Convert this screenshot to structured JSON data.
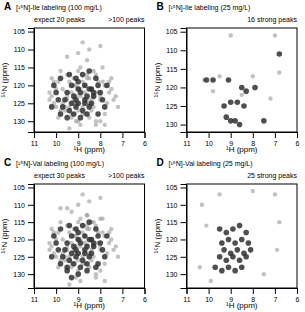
{
  "chart_data": [
    {
      "type": "scatter",
      "label": "A",
      "title": "[¹⁵N]-Ile labeling (100 mg/L)",
      "subtitle": "expect 20 peaks",
      "annotation": ">100 peaks",
      "xlabel": "¹H (ppm)",
      "ylabel": "¹⁵N (ppm)",
      "xlim": [
        11,
        6
      ],
      "ylim": [
        133,
        104
      ],
      "xticks": [
        11,
        10,
        9,
        8,
        7,
        6
      ],
      "yticks": [
        105,
        110,
        115,
        120,
        125,
        130
      ],
      "series": [
        {
          "color": "#999999",
          "x": [
            9.8,
            9.5,
            9.2,
            8.9,
            8.6,
            9.1,
            8.8,
            8.5,
            8.2,
            7.9,
            9.3,
            9.0,
            8.7,
            8.4,
            8.1,
            9.5,
            9.2,
            8.9,
            8.6,
            8.3,
            9.7,
            9.4,
            9.1,
            8.8,
            8.5,
            9.6,
            9.3,
            9.0,
            8.7,
            8.4,
            10.0,
            10.2,
            10.1,
            9.9,
            10.3,
            7.8,
            7.6,
            7.5,
            7.7,
            7.4,
            8.0,
            8.2,
            8.5,
            9.0,
            9.3,
            8.6,
            8.3,
            9.4,
            9.7,
            8.0,
            8.7,
            9.1,
            8.4,
            9.6,
            8.8,
            9.0,
            8.1,
            8.9,
            9.5,
            8.3,
            7.9,
            8.6,
            9.2,
            8.0,
            9.8,
            10.1,
            10.3,
            10.2,
            10.0,
            9.9,
            7.5,
            7.3,
            7.6,
            7.2,
            7.8,
            8.5,
            9.0,
            9.5,
            8.0,
            8.8,
            8.2,
            8.9,
            9.4,
            7.8,
            9.1
          ],
          "values": [
            116,
            117,
            118,
            115,
            113,
            120,
            119,
            118,
            117,
            119,
            122,
            121,
            120,
            121,
            122,
            123,
            124,
            123,
            124,
            123,
            125,
            126,
            125,
            126,
            125,
            127,
            128,
            127,
            128,
            127,
            121,
            123,
            125,
            119,
            122,
            120,
            122,
            118,
            125,
            124,
            130,
            131,
            129,
            130,
            129,
            118,
            116,
            119,
            121,
            124,
            122,
            123,
            124,
            126,
            128,
            116,
            119,
            121,
            124,
            126,
            115,
            117,
            120,
            123,
            127,
            119,
            124,
            118,
            126,
            129,
            121,
            123,
            119,
            126,
            128,
            110,
            111,
            112,
            109,
            108,
            130,
            131,
            132,
            131,
            130
          ]
        },
        {
          "color": "#303030",
          "x": [
            9.4,
            9.1,
            8.8,
            8.5,
            8.2,
            9.3,
            9.0,
            8.7,
            8.4,
            8.1,
            9.5,
            9.2,
            8.9,
            8.6,
            8.3,
            9.6,
            9.3,
            9.0,
            8.7,
            8.4,
            9.7,
            9.4,
            9.1,
            8.8,
            8.5,
            9.8,
            9.5,
            9.2,
            8.9,
            8.6,
            8.0,
            7.9,
            7.8,
            8.1,
            7.7,
            10.0,
            10.1,
            9.9,
            10.2,
            9.8,
            9.0,
            8.5,
            8.3,
            9.1,
            8.7
          ],
          "values": [
            117,
            118,
            117,
            116,
            118,
            120,
            121,
            120,
            121,
            120,
            122,
            123,
            122,
            123,
            122,
            124,
            125,
            125,
            124,
            125,
            126,
            127,
            126,
            127,
            126,
            128,
            129,
            128,
            129,
            128,
            122,
            124,
            126,
            128,
            120,
            122,
            120,
            124,
            126,
            118,
            119,
            121,
            123,
            124,
            125
          ]
        }
      ]
    },
    {
      "type": "scatter",
      "label": "B",
      "title": "[¹⁵N]-Ile labeling (25 mg/L)",
      "annotation": "16 strong peaks",
      "xlabel": "¹H (ppm)",
      "ylabel": "¹⁵N (ppm)",
      "xlim": [
        11,
        6
      ],
      "ylim": [
        132,
        104
      ],
      "xticks": [
        11,
        10,
        9,
        8,
        7,
        6
      ],
      "yticks": [
        105,
        110,
        115,
        120,
        125,
        130
      ],
      "series": [
        {
          "color": "#999999",
          "x": [
            9.0,
            7.0,
            9.5,
            8.0,
            6.8,
            10.2,
            9.8,
            8.5,
            7.2
          ],
          "values": [
            106,
            106,
            117,
            117,
            116,
            118,
            121,
            122,
            123
          ]
        },
        {
          "color": "#303030",
          "x": [
            10.1,
            9.8,
            9.1,
            8.5,
            8.3,
            7.9,
            9.3,
            9.0,
            8.7,
            8.4,
            9.2,
            9.0,
            8.8,
            8.6,
            7.5,
            6.8
          ],
          "values": [
            118,
            118,
            118,
            120,
            121,
            120,
            125,
            124,
            124,
            125,
            128,
            129,
            129,
            130,
            129,
            111
          ]
        }
      ]
    },
    {
      "type": "scatter",
      "label": "C",
      "title": "[¹⁵N]-Val labeling (100 mg/L)",
      "subtitle": "expect 30 peaks",
      "annotation": ">100 peaks",
      "xlabel": "¹H (ppm)",
      "ylabel": "¹⁵N (ppm)",
      "xlim": [
        11,
        6
      ],
      "ylim": [
        134,
        104
      ],
      "xticks": [
        11,
        10,
        9,
        8,
        7,
        6
      ],
      "yticks": [
        105,
        110,
        115,
        120,
        125,
        130
      ],
      "series": [
        {
          "color": "#999999",
          "x": [
            9.8,
            9.5,
            9.2,
            8.9,
            8.6,
            9.1,
            8.8,
            8.5,
            8.2,
            7.9,
            9.3,
            9.0,
            8.7,
            8.4,
            8.1,
            9.5,
            9.2,
            8.9,
            8.6,
            8.3,
            9.7,
            9.4,
            9.1,
            8.8,
            8.5,
            9.6,
            9.3,
            9.0,
            8.7,
            8.4,
            10.0,
            10.2,
            10.1,
            9.9,
            10.3,
            7.8,
            7.6,
            7.5,
            7.7,
            7.4,
            8.0,
            8.2,
            8.5,
            9.0,
            9.3,
            8.6,
            8.3,
            9.4,
            9.7,
            8.0,
            8.7,
            9.1,
            8.4,
            9.6,
            8.8,
            9.0,
            8.1,
            8.9,
            9.5,
            8.3,
            7.9,
            8.6,
            9.2,
            8.0,
            9.8,
            10.1,
            10.3,
            10.2,
            10.0,
            9.9,
            7.5,
            7.3,
            7.6,
            7.2,
            7.8,
            8.5,
            9.0,
            9.5,
            8.0,
            8.8,
            8.2,
            8.9,
            9.4,
            7.8,
            9.1,
            9.8,
            9.3,
            8.6,
            8.0,
            8.4
          ],
          "values": [
            115,
            116,
            117,
            114,
            113,
            119,
            118,
            117,
            116,
            118,
            121,
            120,
            119,
            120,
            121,
            122,
            123,
            122,
            122,
            122,
            124,
            125,
            124,
            125,
            124,
            126,
            127,
            126,
            127,
            126,
            120,
            122,
            124,
            118,
            121,
            119,
            121,
            117,
            124,
            123,
            129,
            130,
            128,
            129,
            128,
            117,
            115,
            118,
            120,
            123,
            121,
            122,
            123,
            125,
            127,
            115,
            118,
            120,
            123,
            125,
            114,
            116,
            119,
            122,
            126,
            118,
            123,
            117,
            125,
            128,
            120,
            122,
            118,
            125,
            127,
            109,
            110,
            111,
            108,
            107,
            131,
            132,
            133,
            132,
            131,
            111,
            112,
            113,
            114,
            115
          ]
        },
        {
          "color": "#303030",
          "x": [
            9.4,
            9.1,
            8.8,
            8.5,
            8.2,
            9.3,
            9.0,
            8.7,
            8.4,
            8.1,
            9.5,
            9.2,
            8.9,
            8.6,
            8.3,
            9.6,
            9.3,
            9.0,
            8.7,
            8.4,
            9.7,
            9.4,
            9.1,
            8.8,
            8.5,
            9.8,
            9.5,
            9.2,
            8.9,
            8.6,
            8.0,
            7.9,
            7.8,
            8.1,
            7.7,
            10.0,
            10.1,
            9.9,
            10.2,
            9.8,
            9.0,
            8.5,
            8.3,
            9.1,
            8.7,
            9.5,
            9.0,
            8.6,
            8.2,
            9.3
          ],
          "values": [
            116,
            117,
            116,
            115,
            117,
            119,
            120,
            119,
            120,
            119,
            121,
            122,
            121,
            122,
            121,
            123,
            124,
            124,
            123,
            124,
            125,
            126,
            125,
            126,
            125,
            127,
            128,
            127,
            128,
            127,
            121,
            123,
            125,
            127,
            119,
            121,
            119,
            123,
            125,
            117,
            118,
            120,
            122,
            123,
            124,
            129,
            130,
            129,
            128,
            131
          ]
        }
      ]
    },
    {
      "type": "scatter",
      "label": "D",
      "title": "[¹⁵N]-Val labeling (25 mg/L)",
      "annotation": "25 strong peaks",
      "xlabel": "¹H (ppm)",
      "ylabel": "¹⁵N (ppm)",
      "xlim": [
        11,
        6
      ],
      "ylim": [
        134,
        104
      ],
      "xticks": [
        11,
        10,
        9,
        8,
        7,
        6
      ],
      "yticks": [
        105,
        110,
        115,
        120,
        125,
        130
      ],
      "series": [
        {
          "color": "#999999",
          "x": [
            7.0,
            6.8,
            10.3,
            10.1,
            9.5,
            8.0,
            7.5,
            6.9,
            10.4,
            9.9
          ],
          "values": [
            107,
            115,
            110,
            116,
            107,
            106,
            130,
            123,
            128,
            132
          ]
        },
        {
          "color": "#303030",
          "x": [
            9.5,
            9.2,
            8.9,
            8.6,
            8.3,
            9.4,
            9.1,
            8.8,
            8.5,
            8.2,
            9.3,
            9.0,
            8.7,
            8.4,
            8.1,
            9.5,
            9.2,
            8.9,
            8.6,
            8.3,
            9.7,
            9.4,
            9.1,
            8.8,
            8.5
          ],
          "values": [
            117,
            118,
            117,
            116,
            118,
            121,
            120,
            121,
            120,
            121,
            123,
            124,
            123,
            124,
            123,
            125,
            126,
            125,
            126,
            125,
            128,
            129,
            128,
            129,
            128
          ]
        }
      ]
    }
  ]
}
